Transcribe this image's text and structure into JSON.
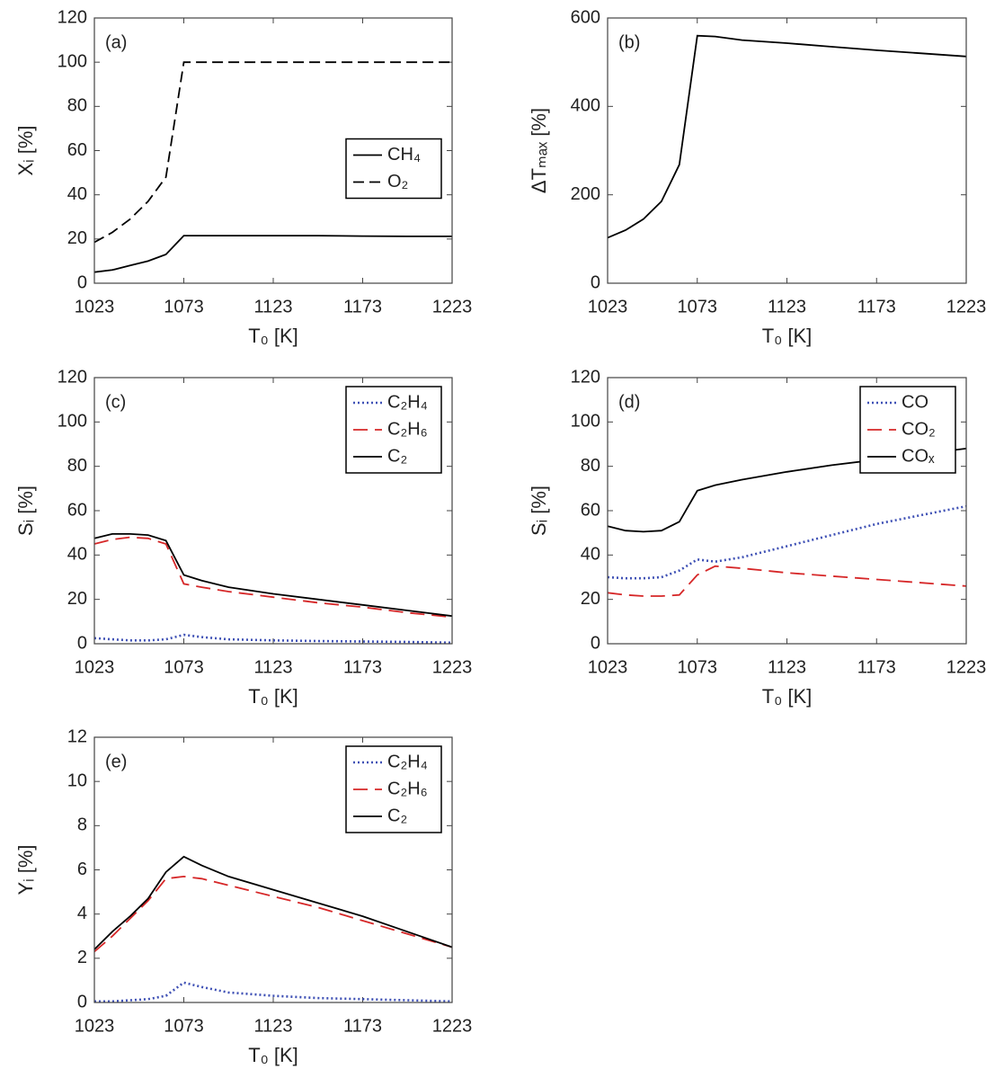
{
  "chart_data": [
    {
      "type": "line",
      "annotation": "(a)",
      "xlabel": "T₀ [K]",
      "ylabel": "Xᵢ [%]",
      "x": [
        1023,
        1033,
        1043,
        1053,
        1063,
        1073,
        1083,
        1098,
        1123,
        1148,
        1173,
        1198,
        1223
      ],
      "xlim": [
        1023,
        1223
      ],
      "xticks": [
        1023,
        1073,
        1123,
        1173,
        1223
      ],
      "ylim": [
        0,
        120
      ],
      "yticks": [
        0,
        20,
        40,
        60,
        80,
        100,
        120
      ],
      "legend": "center right",
      "series": [
        {
          "name": "CH₄",
          "color": "#000000",
          "linestyle": "solid",
          "values": [
            5,
            6,
            8,
            10,
            13,
            21.5,
            21.5,
            21.5,
            21.5,
            21.5,
            21.3,
            21.2,
            21.2
          ]
        },
        {
          "name": "O₂",
          "color": "#000000",
          "linestyle": "dashed",
          "values": [
            18.5,
            23,
            29,
            37,
            48,
            100,
            100,
            100,
            100,
            100,
            100,
            100,
            100
          ]
        }
      ]
    },
    {
      "type": "line",
      "annotation": "(b)",
      "xlabel": "T₀ [K]",
      "ylabel": "ΔTₘₐₓ [%]",
      "x": [
        1023,
        1033,
        1043,
        1053,
        1063,
        1073,
        1083,
        1098,
        1123,
        1148,
        1173,
        1198,
        1223
      ],
      "xlim": [
        1023,
        1223
      ],
      "xticks": [
        1023,
        1073,
        1123,
        1173,
        1223
      ],
      "ylim": [
        0,
        600
      ],
      "yticks": [
        0,
        200,
        400,
        600
      ],
      "series": [
        {
          "color": "#000000",
          "linestyle": "solid",
          "values": [
            103,
            120,
            145,
            185,
            268,
            560,
            558,
            550,
            543,
            535,
            527,
            520,
            513
          ]
        }
      ]
    },
    {
      "type": "line",
      "annotation": "(c)",
      "xlabel": "T₀ [K]",
      "ylabel": "Sᵢ [%]",
      "x": [
        1023,
        1033,
        1043,
        1053,
        1063,
        1073,
        1083,
        1098,
        1123,
        1148,
        1173,
        1198,
        1223
      ],
      "xlim": [
        1023,
        1223
      ],
      "xticks": [
        1023,
        1073,
        1123,
        1173,
        1223
      ],
      "ylim": [
        0,
        120
      ],
      "yticks": [
        0,
        20,
        40,
        60,
        80,
        100,
        120
      ],
      "legend": "upper right",
      "series": [
        {
          "name": "C₂H₄",
          "color": "#3f51b5",
          "linestyle": "dotted",
          "values": [
            2.5,
            2,
            1.5,
            1.5,
            2,
            4,
            3,
            2,
            1.5,
            1.2,
            1,
            0.8,
            0.5
          ]
        },
        {
          "name": "C₂H₆",
          "color": "#d62728",
          "linestyle": "longdash",
          "values": [
            45,
            47,
            48,
            47.5,
            45,
            27,
            25.5,
            23.5,
            21,
            18.5,
            16.5,
            14,
            12
          ]
        },
        {
          "name": "C₂",
          "color": "#000000",
          "linestyle": "solid",
          "values": [
            47.5,
            49.5,
            49.5,
            49,
            46.5,
            31,
            28.5,
            25.5,
            22.5,
            20,
            17.5,
            15,
            12.5
          ]
        }
      ]
    },
    {
      "type": "line",
      "annotation": "(d)",
      "xlabel": "T₀ [K]",
      "ylabel": "Sᵢ [%]",
      "x": [
        1023,
        1033,
        1043,
        1053,
        1063,
        1073,
        1083,
        1098,
        1123,
        1148,
        1173,
        1198,
        1223
      ],
      "xlim": [
        1023,
        1223
      ],
      "xticks": [
        1023,
        1073,
        1123,
        1173,
        1223
      ],
      "ylim": [
        0,
        120
      ],
      "yticks": [
        0,
        20,
        40,
        60,
        80,
        100,
        120
      ],
      "legend": "upper right",
      "series": [
        {
          "name": "CO",
          "color": "#3f51b5",
          "linestyle": "dotted",
          "values": [
            30,
            29.5,
            29.5,
            30,
            33,
            38,
            37,
            39,
            44,
            49,
            54,
            58,
            62
          ]
        },
        {
          "name": "CO₂",
          "color": "#d62728",
          "linestyle": "longdash",
          "values": [
            23,
            22,
            21.5,
            21.5,
            22,
            31,
            35,
            34,
            32,
            30.5,
            29,
            27.5,
            26
          ]
        },
        {
          "name": "COₓ",
          "color": "#000000",
          "linestyle": "solid",
          "values": [
            53,
            51,
            50.5,
            51,
            55,
            69,
            71.5,
            74,
            77.5,
            80.5,
            83,
            85.5,
            88
          ]
        }
      ]
    },
    {
      "type": "line",
      "annotation": "(e)",
      "xlabel": "T₀ [K]",
      "ylabel": "Yᵢ [%]",
      "x": [
        1023,
        1033,
        1043,
        1053,
        1063,
        1073,
        1083,
        1098,
        1123,
        1148,
        1173,
        1198,
        1223
      ],
      "xlim": [
        1023,
        1223
      ],
      "xticks": [
        1023,
        1073,
        1123,
        1173,
        1223
      ],
      "ylim": [
        0,
        12
      ],
      "yticks": [
        0,
        2,
        4,
        6,
        8,
        10,
        12
      ],
      "legend": "upper right",
      "series": [
        {
          "name": "C₂H₄",
          "color": "#3f51b5",
          "linestyle": "dotted",
          "values": [
            0.05,
            0.05,
            0.1,
            0.15,
            0.3,
            0.9,
            0.7,
            0.45,
            0.3,
            0.2,
            0.15,
            0.1,
            0.05
          ]
        },
        {
          "name": "C₂H₆",
          "color": "#d62728",
          "linestyle": "longdash",
          "values": [
            2.3,
            3,
            3.8,
            4.6,
            5.6,
            5.7,
            5.6,
            5.3,
            4.8,
            4.3,
            3.7,
            3.1,
            2.5
          ]
        },
        {
          "name": "C₂",
          "color": "#000000",
          "linestyle": "solid",
          "values": [
            2.4,
            3.2,
            3.9,
            4.7,
            5.9,
            6.6,
            6.2,
            5.7,
            5.1,
            4.5,
            3.9,
            3.2,
            2.5
          ]
        }
      ]
    }
  ]
}
